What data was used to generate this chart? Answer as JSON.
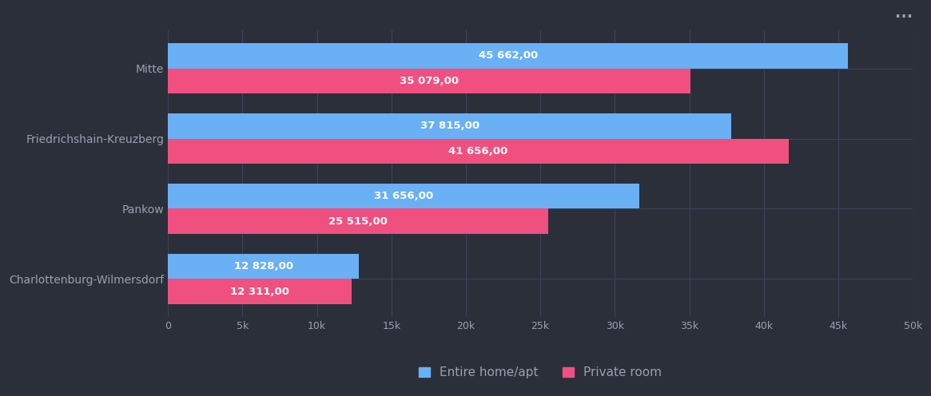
{
  "categories": [
    "Charlottenburg-Wilmersdorf",
    "Pankow",
    "Friedrichshain-Kreuzberg",
    "Mitte"
  ],
  "series": [
    {
      "name": "Entire home/apt",
      "color": "#6ab0f5",
      "values": [
        12828,
        31656,
        37815,
        45662
      ]
    },
    {
      "name": "Private room",
      "color": "#f05080",
      "values": [
        12311,
        25515,
        41656,
        35079
      ]
    }
  ],
  "xlim": [
    0,
    50000
  ],
  "xticks": [
    0,
    5000,
    10000,
    15000,
    20000,
    25000,
    30000,
    35000,
    40000,
    45000,
    50000
  ],
  "xtick_labels": [
    "0",
    "5k",
    "10k",
    "15k",
    "20k",
    "25k",
    "30k",
    "35k",
    "40k",
    "45k",
    "50k"
  ],
  "background_color": "#2b2f3a",
  "text_color": "#9aa0b0",
  "label_color": "#ffffff",
  "grid_color": "#3d4357",
  "bar_height": 0.36,
  "bar_labels": [
    [
      "12 828,00",
      "31 656,00",
      "37 815,00",
      "45 662,00"
    ],
    [
      "12 311,00",
      "25 515,00",
      "41 656,00",
      "35 079,00"
    ]
  ],
  "legend_items": [
    "Entire home/apt",
    "Private room"
  ],
  "legend_colors": [
    "#6ab0f5",
    "#f05080"
  ],
  "dots_color": "#9aa0b0"
}
